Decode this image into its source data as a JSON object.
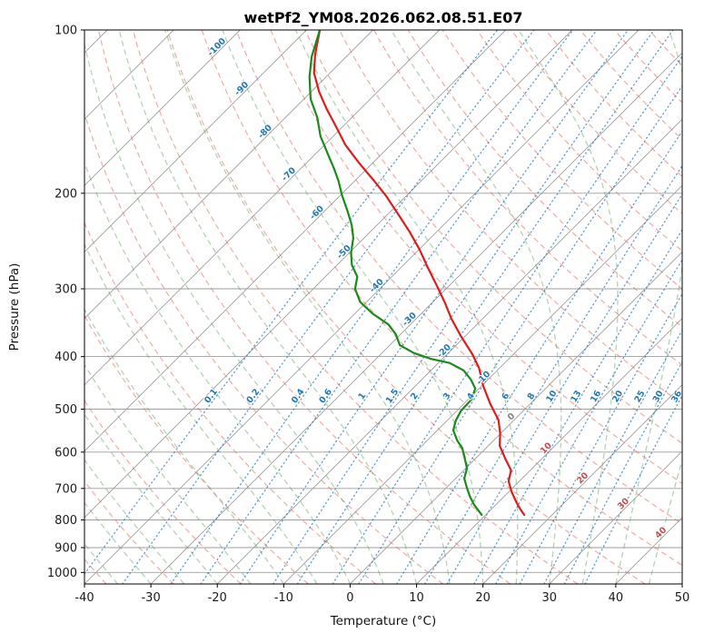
{
  "title": "wetPf2_YM08.2026.062.08.51.E07",
  "axes": {
    "x_label": "Temperature (°C)",
    "y_label": "Pressure (hPa)",
    "x_ticks": [
      -40,
      -30,
      -20,
      -10,
      0,
      10,
      20,
      30,
      40,
      50
    ],
    "y_ticks": [
      100,
      200,
      300,
      400,
      500,
      600,
      700,
      800,
      900,
      1000
    ]
  },
  "chart_data": {
    "type": "line",
    "variant": "skew-t-log-p",
    "title": "wetPf2_YM08.2026.062.08.51.E07",
    "xlabel": "Temperature (°C)",
    "ylabel": "Pressure (hPa)",
    "xlim": [
      -40,
      50
    ],
    "p_top": 100,
    "p_bottom": 1050,
    "skew_deg": 45,
    "grid": true,
    "isobars": [
      100,
      200,
      300,
      400,
      500,
      600,
      700,
      800,
      900,
      1000
    ],
    "isotherms": {
      "start": -160,
      "end": 50,
      "step": 10,
      "color": "#9e9e9e"
    },
    "dry_adiabats": {
      "theta_start": -50,
      "theta_end": 200,
      "step": 10,
      "color": "#e0685a"
    },
    "moist_adiabats": {
      "t0_start": -45,
      "t0_end": 45,
      "step": 5,
      "color": "#579e57"
    },
    "mixing_ratio_lines": {
      "values": [
        0.1,
        0.2,
        0.4,
        0.6,
        1,
        1.5,
        2,
        3,
        4,
        6,
        8,
        10,
        13,
        16,
        20,
        25,
        30,
        36
      ],
      "label_pressure_hPa": 478,
      "color": "#1f77b4"
    },
    "isotherm_labels": [
      {
        "t": -100,
        "p": 109,
        "color": "#1f77b4"
      },
      {
        "t": -90,
        "p": 130,
        "color": "#1f77b4"
      },
      {
        "t": -80,
        "p": 156,
        "color": "#1f77b4"
      },
      {
        "t": -70,
        "p": 187,
        "color": "#1f77b4"
      },
      {
        "t": -60,
        "p": 220,
        "color": "#1f77b4"
      },
      {
        "t": -50,
        "p": 260,
        "color": "#1f77b4"
      },
      {
        "t": -40,
        "p": 300,
        "color": "#1f77b4"
      },
      {
        "t": -30,
        "p": 346,
        "color": "#1f77b4"
      },
      {
        "t": -20,
        "p": 396,
        "color": "#1f77b4"
      },
      {
        "t": -10,
        "p": 444,
        "color": "#1f77b4"
      },
      {
        "t": 0,
        "p": 523,
        "color": "#808080"
      },
      {
        "t": 10,
        "p": 598,
        "color": "#c44e4e"
      },
      {
        "t": 20,
        "p": 679,
        "color": "#c44e4e"
      },
      {
        "t": 30,
        "p": 757,
        "color": "#c44e4e"
      },
      {
        "t": 40,
        "p": 856,
        "color": "#c44e4e"
      }
    ],
    "series": [
      {
        "name": "temperature",
        "color": "#dd1c1c",
        "points": [
          [
            100,
            -88.0
          ],
          [
            111,
            -85.0
          ],
          [
            120,
            -82.4
          ],
          [
            130,
            -78.8
          ],
          [
            140,
            -75.0
          ],
          [
            151,
            -70.9
          ],
          [
            163,
            -66.8
          ],
          [
            176,
            -62.0
          ],
          [
            190,
            -57.0
          ],
          [
            202,
            -53.1
          ],
          [
            218,
            -48.6
          ],
          [
            235,
            -44.2
          ],
          [
            254,
            -39.9
          ],
          [
            275,
            -35.8
          ],
          [
            297,
            -31.7
          ],
          [
            320,
            -27.8
          ],
          [
            340,
            -24.8
          ],
          [
            367,
            -20.6
          ],
          [
            396,
            -16.2
          ],
          [
            420,
            -13.1
          ],
          [
            453,
            -9.8
          ],
          [
            490,
            -5.9
          ],
          [
            523,
            -2.4
          ],
          [
            554,
            -0.1
          ],
          [
            584,
            1.7
          ],
          [
            617,
            4.5
          ],
          [
            648,
            7.1
          ],
          [
            679,
            8.4
          ],
          [
            711,
            10.5
          ],
          [
            742,
            12.7
          ],
          [
            765,
            14.4
          ],
          [
            783,
            15.8
          ]
        ]
      },
      {
        "name": "dewpoint",
        "color": "#1a8a1a",
        "points": [
          [
            100,
            -88.0
          ],
          [
            112,
            -85.2
          ],
          [
            122,
            -82.5
          ],
          [
            134,
            -79.0
          ],
          [
            145,
            -75.2
          ],
          [
            157,
            -71.9
          ],
          [
            170,
            -67.9
          ],
          [
            180,
            -65.0
          ],
          [
            190,
            -62.4
          ],
          [
            202,
            -59.7
          ],
          [
            215,
            -56.7
          ],
          [
            229,
            -53.8
          ],
          [
            242,
            -51.6
          ],
          [
            257,
            -49.8
          ],
          [
            271,
            -47.8
          ],
          [
            285,
            -45.2
          ],
          [
            300,
            -43.7
          ],
          [
            317,
            -41.0
          ],
          [
            333,
            -37.4
          ],
          [
            349,
            -33.3
          ],
          [
            364,
            -30.7
          ],
          [
            381,
            -28.5
          ],
          [
            394,
            -25.2
          ],
          [
            404,
            -21.7
          ],
          [
            411,
            -18.3
          ],
          [
            424,
            -15.1
          ],
          [
            441,
            -12.6
          ],
          [
            458,
            -10.6
          ],
          [
            480,
            -9.5
          ],
          [
            503,
            -9.4
          ],
          [
            525,
            -8.7
          ],
          [
            547,
            -7.6
          ],
          [
            571,
            -5.5
          ],
          [
            591,
            -3.5
          ],
          [
            617,
            -1.6
          ],
          [
            643,
            0.2
          ],
          [
            671,
            1.3
          ],
          [
            698,
            3.1
          ],
          [
            725,
            4.9
          ],
          [
            751,
            6.8
          ],
          [
            783,
            9.4
          ]
        ]
      }
    ]
  }
}
